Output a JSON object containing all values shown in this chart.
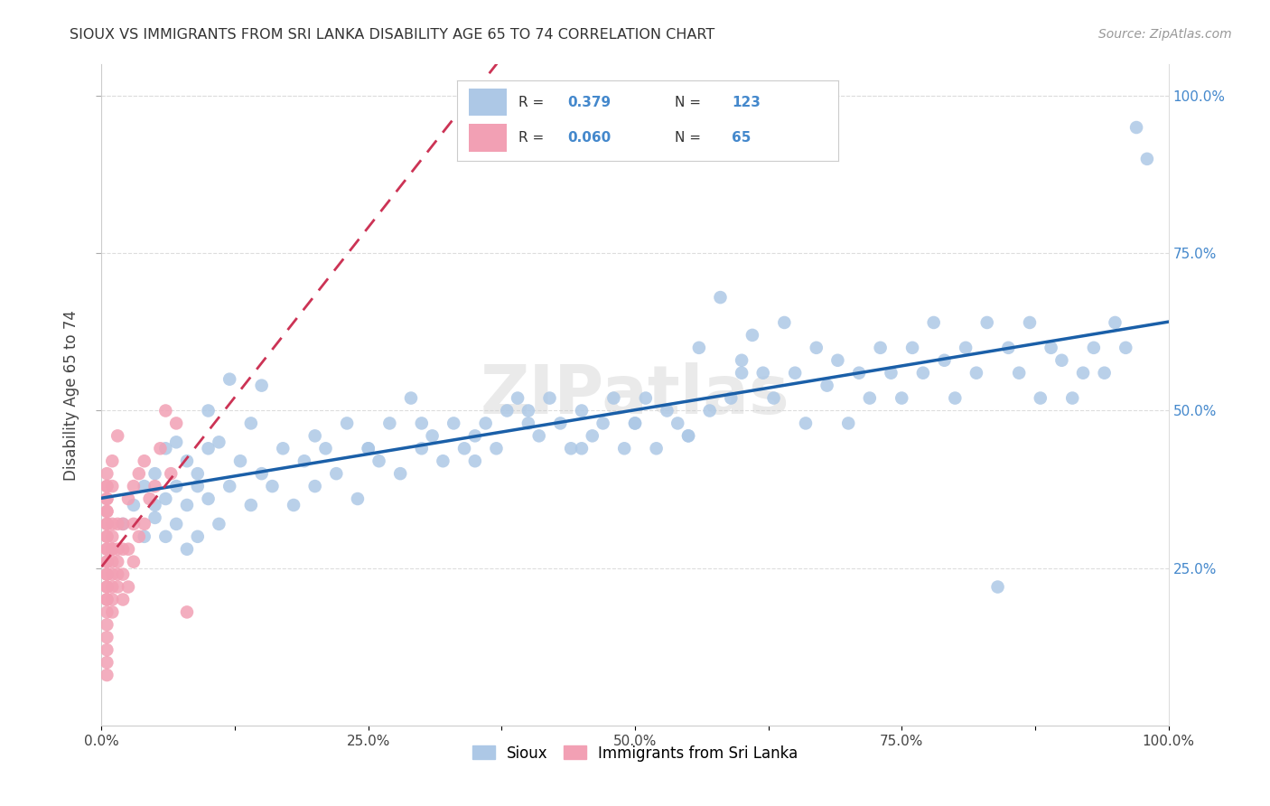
{
  "title": "SIOUX VS IMMIGRANTS FROM SRI LANKA DISABILITY AGE 65 TO 74 CORRELATION CHART",
  "source": "Source: ZipAtlas.com",
  "ylabel": "Disability Age 65 to 74",
  "xlim": [
    0.0,
    1.0
  ],
  "ylim": [
    0.0,
    1.05
  ],
  "xtick_labels": [
    "0.0%",
    "",
    "25.0%",
    "",
    "50.0%",
    "",
    "75.0%",
    "",
    "100.0%"
  ],
  "xtick_positions": [
    0.0,
    0.125,
    0.25,
    0.375,
    0.5,
    0.625,
    0.75,
    0.875,
    1.0
  ],
  "ytick_labels": [
    "25.0%",
    "50.0%",
    "75.0%",
    "100.0%"
  ],
  "ytick_positions": [
    0.25,
    0.5,
    0.75,
    1.0
  ],
  "legend_bottom_labels": [
    "Sioux",
    "Immigrants from Sri Lanka"
  ],
  "sioux_color": "#adc8e6",
  "srilanka_color": "#f2a0b4",
  "trendline_sioux_color": "#1a5fa8",
  "trendline_srilanka_color": "#cc3355",
  "background_color": "#ffffff",
  "grid_color": "#dddddd",
  "watermark": "ZIPatlas",
  "sioux_x": [
    0.02,
    0.03,
    0.04,
    0.05,
    0.05,
    0.06,
    0.06,
    0.07,
    0.07,
    0.08,
    0.08,
    0.09,
    0.09,
    0.1,
    0.1,
    0.11,
    0.11,
    0.12,
    0.13,
    0.14,
    0.14,
    0.15,
    0.16,
    0.17,
    0.18,
    0.19,
    0.2,
    0.21,
    0.22,
    0.23,
    0.24,
    0.25,
    0.26,
    0.27,
    0.28,
    0.29,
    0.3,
    0.31,
    0.32,
    0.33,
    0.34,
    0.35,
    0.36,
    0.37,
    0.38,
    0.39,
    0.4,
    0.41,
    0.42,
    0.43,
    0.44,
    0.45,
    0.46,
    0.47,
    0.48,
    0.49,
    0.5,
    0.51,
    0.52,
    0.53,
    0.54,
    0.55,
    0.56,
    0.57,
    0.58,
    0.59,
    0.6,
    0.61,
    0.62,
    0.63,
    0.64,
    0.65,
    0.66,
    0.67,
    0.68,
    0.69,
    0.7,
    0.71,
    0.72,
    0.73,
    0.74,
    0.75,
    0.76,
    0.77,
    0.78,
    0.79,
    0.8,
    0.81,
    0.82,
    0.83,
    0.84,
    0.85,
    0.86,
    0.87,
    0.88,
    0.89,
    0.9,
    0.91,
    0.92,
    0.93,
    0.94,
    0.95,
    0.96,
    0.97,
    0.98,
    0.07,
    0.08,
    0.09,
    0.05,
    0.06,
    0.04,
    0.1,
    0.12,
    0.15,
    0.2,
    0.25,
    0.3,
    0.35,
    0.4,
    0.45,
    0.5,
    0.55,
    0.6
  ],
  "sioux_y": [
    0.32,
    0.35,
    0.38,
    0.33,
    0.4,
    0.3,
    0.36,
    0.32,
    0.38,
    0.35,
    0.42,
    0.3,
    0.38,
    0.36,
    0.44,
    0.32,
    0.45,
    0.38,
    0.42,
    0.35,
    0.48,
    0.4,
    0.38,
    0.44,
    0.35,
    0.42,
    0.38,
    0.44,
    0.4,
    0.48,
    0.36,
    0.44,
    0.42,
    0.48,
    0.4,
    0.52,
    0.44,
    0.46,
    0.42,
    0.48,
    0.44,
    0.42,
    0.48,
    0.44,
    0.5,
    0.52,
    0.48,
    0.46,
    0.52,
    0.48,
    0.44,
    0.5,
    0.46,
    0.48,
    0.52,
    0.44,
    0.48,
    0.52,
    0.44,
    0.5,
    0.48,
    0.46,
    0.6,
    0.5,
    0.68,
    0.52,
    0.58,
    0.62,
    0.56,
    0.52,
    0.64,
    0.56,
    0.48,
    0.6,
    0.54,
    0.58,
    0.48,
    0.56,
    0.52,
    0.6,
    0.56,
    0.52,
    0.6,
    0.56,
    0.64,
    0.58,
    0.52,
    0.6,
    0.56,
    0.64,
    0.22,
    0.6,
    0.56,
    0.64,
    0.52,
    0.6,
    0.58,
    0.52,
    0.56,
    0.6,
    0.56,
    0.64,
    0.6,
    0.95,
    0.9,
    0.45,
    0.28,
    0.4,
    0.35,
    0.44,
    0.3,
    0.5,
    0.55,
    0.54,
    0.46,
    0.44,
    0.48,
    0.46,
    0.5,
    0.44,
    0.48,
    0.46,
    0.56
  ],
  "srilanka_x": [
    0.005,
    0.005,
    0.005,
    0.005,
    0.005,
    0.005,
    0.005,
    0.005,
    0.005,
    0.005,
    0.005,
    0.005,
    0.005,
    0.005,
    0.005,
    0.005,
    0.005,
    0.005,
    0.005,
    0.005,
    0.005,
    0.005,
    0.005,
    0.005,
    0.005,
    0.005,
    0.005,
    0.01,
    0.01,
    0.01,
    0.01,
    0.01,
    0.01,
    0.01,
    0.01,
    0.01,
    0.01,
    0.01,
    0.015,
    0.015,
    0.015,
    0.015,
    0.015,
    0.015,
    0.02,
    0.02,
    0.02,
    0.02,
    0.025,
    0.025,
    0.025,
    0.03,
    0.03,
    0.03,
    0.035,
    0.035,
    0.04,
    0.04,
    0.045,
    0.05,
    0.055,
    0.06,
    0.065,
    0.07,
    0.08
  ],
  "srilanka_y": [
    0.28,
    0.3,
    0.32,
    0.34,
    0.36,
    0.38,
    0.26,
    0.24,
    0.22,
    0.2,
    0.32,
    0.3,
    0.28,
    0.26,
    0.24,
    0.22,
    0.2,
    0.18,
    0.16,
    0.14,
    0.4,
    0.38,
    0.36,
    0.34,
    0.12,
    0.1,
    0.08,
    0.28,
    0.32,
    0.3,
    0.28,
    0.26,
    0.24,
    0.22,
    0.2,
    0.18,
    0.42,
    0.38,
    0.32,
    0.28,
    0.26,
    0.24,
    0.22,
    0.46,
    0.32,
    0.28,
    0.24,
    0.2,
    0.36,
    0.28,
    0.22,
    0.38,
    0.32,
    0.26,
    0.4,
    0.3,
    0.42,
    0.32,
    0.36,
    0.38,
    0.44,
    0.5,
    0.4,
    0.48,
    0.18
  ]
}
